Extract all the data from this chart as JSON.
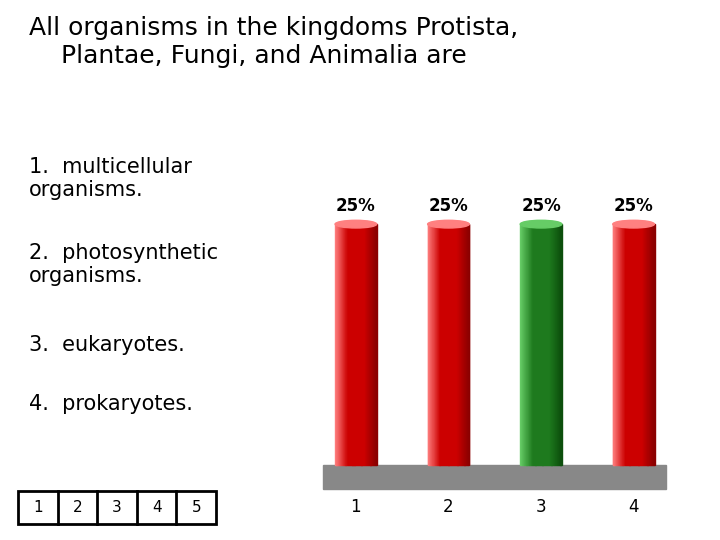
{
  "title_line1": "All organisms in the kingdoms Protista,",
  "title_line2": "    Plantae, Fungi, and Animalia are",
  "title_fontsize": 18,
  "background_color": "#ffffff",
  "categories": [
    "1",
    "2",
    "3",
    "4"
  ],
  "values": [
    25,
    25,
    25,
    25
  ],
  "bar_colors_main": [
    "#cc0000",
    "#cc0000",
    "#1e7a1e",
    "#cc0000"
  ],
  "bar_colors_light": [
    "#ff8080",
    "#ff8080",
    "#66cc66",
    "#ff8080"
  ],
  "bar_colors_dark": [
    "#880000",
    "#880000",
    "#0d4d0d",
    "#880000"
  ],
  "bar_labels": [
    "25%",
    "25%",
    "25%",
    "25%"
  ],
  "label_fontsize": 12,
  "tick_fontsize": 12,
  "answer_items": [
    "multicellular\norganisms.",
    "photosynthetic\norganisms.",
    "eukaryotes.",
    "prokaryotes."
  ],
  "answer_fontsize": 15,
  "number_boxes": [
    "1",
    "2",
    "3",
    "4",
    "5"
  ],
  "box_color": "#ffffff",
  "box_edge_color": "#000000",
  "platform_color": "#888888"
}
